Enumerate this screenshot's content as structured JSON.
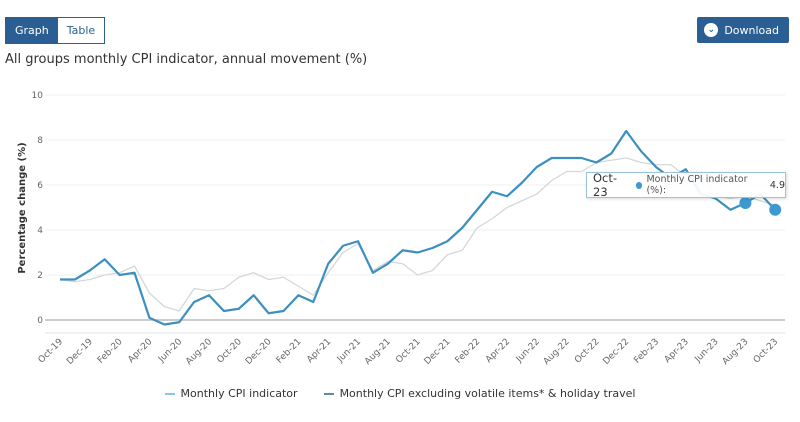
{
  "toolbar": {
    "graph_label": "Graph",
    "table_label": "Table",
    "download_label": "Download",
    "download_icon": "chevron-down-circle-icon",
    "active_view": "Graph"
  },
  "colors": {
    "brand": "#2b5f93",
    "series_cpi": "#3d8fc0",
    "series_excl": "#d3d8dc",
    "legend_cpi": "#8ec4e4",
    "legend_excl": "#5f8aa8"
  },
  "tooltip": {
    "date": "Oct-23",
    "series": "Monthly CPI indicator (%):",
    "value": "4.9"
  },
  "chart_data": {
    "type": "line",
    "title": "All groups monthly CPI indicator, annual movement (%)",
    "ylabel": "Percentage change (%)",
    "xlabel": "",
    "ylim": [
      0,
      10
    ],
    "yticks": [
      0,
      2,
      4,
      6,
      8,
      10
    ],
    "grid": true,
    "legend_position": "bottom",
    "x": [
      "Oct-19",
      "Nov-19",
      "Dec-19",
      "Jan-20",
      "Feb-20",
      "Mar-20",
      "Apr-20",
      "May-20",
      "Jun-20",
      "Jul-20",
      "Aug-20",
      "Sep-20",
      "Oct-20",
      "Nov-20",
      "Dec-20",
      "Jan-21",
      "Feb-21",
      "Mar-21",
      "Apr-21",
      "May-21",
      "Jun-21",
      "Jul-21",
      "Aug-21",
      "Sep-21",
      "Oct-21",
      "Nov-21",
      "Dec-21",
      "Jan-22",
      "Feb-22",
      "Mar-22",
      "Apr-22",
      "May-22",
      "Jun-22",
      "Jul-22",
      "Aug-22",
      "Sep-22",
      "Oct-22",
      "Nov-22",
      "Dec-22",
      "Jan-23",
      "Feb-23",
      "Mar-23",
      "Apr-23",
      "May-23",
      "Jun-23",
      "Jul-23",
      "Aug-23",
      "Sep-23",
      "Oct-23"
    ],
    "xtick_labels": [
      "Oct-19",
      "Dec-19",
      "Feb-20",
      "Apr-20",
      "Jun-20",
      "Aug-20",
      "Oct-20",
      "Dec-20",
      "Feb-21",
      "Apr-21",
      "Jun-21",
      "Aug-21",
      "Oct-21",
      "Dec-21",
      "Feb-22",
      "Apr-22",
      "Jun-22",
      "Aug-22",
      "Oct-22",
      "Dec-22",
      "Feb-23",
      "Apr-23",
      "Jun-23",
      "Aug-23",
      "Oct-23"
    ],
    "series": [
      {
        "name": "Monthly CPI indicator",
        "values": [
          1.8,
          1.8,
          2.2,
          2.7,
          2.0,
          2.1,
          0.1,
          -0.2,
          -0.1,
          0.8,
          1.1,
          0.4,
          0.5,
          1.1,
          0.3,
          0.4,
          1.1,
          0.8,
          2.5,
          3.3,
          3.5,
          2.1,
          2.5,
          3.1,
          3.0,
          3.2,
          3.5,
          4.1,
          4.9,
          5.7,
          5.5,
          6.1,
          6.8,
          7.2,
          7.2,
          7.2,
          7.0,
          7.4,
          8.4,
          7.5,
          6.8,
          6.3,
          6.7,
          5.6,
          5.4,
          4.9,
          5.2,
          5.6,
          4.9
        ]
      },
      {
        "name": "Monthly CPI excluding volatile items* & holiday travel",
        "values": [
          1.8,
          1.7,
          1.8,
          2.0,
          2.1,
          2.4,
          1.2,
          0.6,
          0.4,
          1.4,
          1.3,
          1.4,
          1.9,
          2.1,
          1.8,
          1.9,
          1.5,
          1.1,
          2.1,
          3.0,
          3.4,
          2.2,
          2.6,
          2.5,
          2.0,
          2.2,
          2.9,
          3.1,
          4.1,
          4.5,
          5.0,
          5.3,
          5.6,
          6.2,
          6.6,
          6.6,
          7.0,
          7.1,
          7.2,
          7.0,
          6.9,
          6.9,
          6.4,
          6.5,
          5.5,
          5.4,
          5.5,
          5.3,
          5.1
        ]
      }
    ]
  }
}
